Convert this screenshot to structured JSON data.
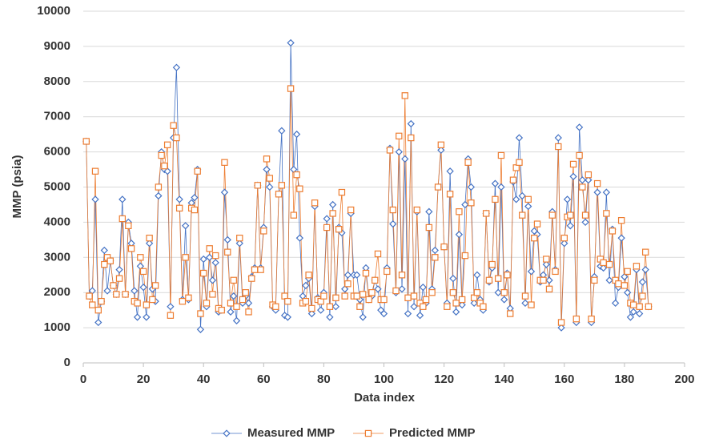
{
  "chart_data": {
    "type": "line",
    "x_label": "Data index",
    "y_label": "MMP (psia)",
    "xlim": [
      0,
      200
    ],
    "xticks": [
      0,
      20,
      40,
      60,
      80,
      100,
      120,
      140,
      160,
      180,
      200
    ],
    "ylim": [
      0,
      10000
    ],
    "yticks": [
      0,
      1000,
      2000,
      3000,
      4000,
      5000,
      6000,
      7000,
      8000,
      9000,
      10000
    ],
    "grid": true,
    "legend": "bottom",
    "x": [
      1,
      2,
      3,
      4,
      5,
      6,
      7,
      8,
      9,
      10,
      11,
      12,
      13,
      14,
      15,
      16,
      17,
      18,
      19,
      20,
      21,
      22,
      23,
      24,
      25,
      26,
      27,
      28,
      29,
      30,
      31,
      32,
      33,
      34,
      35,
      36,
      37,
      38,
      39,
      40,
      41,
      42,
      43,
      44,
      45,
      46,
      47,
      48,
      49,
      50,
      51,
      52,
      53,
      54,
      55,
      56,
      57,
      58,
      59,
      60,
      61,
      62,
      63,
      64,
      65,
      66,
      67,
      68,
      69,
      70,
      71,
      72,
      73,
      74,
      75,
      76,
      77,
      78,
      79,
      80,
      81,
      82,
      83,
      84,
      85,
      86,
      87,
      88,
      89,
      90,
      91,
      92,
      93,
      94,
      95,
      96,
      97,
      98,
      99,
      100,
      101,
      102,
      103,
      104,
      105,
      106,
      107,
      108,
      109,
      110,
      111,
      112,
      113,
      114,
      115,
      116,
      117,
      118,
      119,
      120,
      121,
      122,
      123,
      124,
      125,
      126,
      127,
      128,
      129,
      130,
      131,
      132,
      133,
      134,
      135,
      136,
      137,
      138,
      139,
      140,
      141,
      142,
      143,
      144,
      145,
      146,
      147,
      148,
      149,
      150,
      151,
      152,
      153,
      154,
      155,
      156,
      157,
      158,
      159,
      160,
      161,
      162,
      163,
      164,
      165,
      166,
      167,
      168,
      169,
      170,
      171,
      172,
      173,
      174,
      175,
      176,
      177,
      178,
      179,
      180,
      181,
      182,
      183,
      184,
      185,
      186,
      187,
      188
    ],
    "series": [
      {
        "name": "Measured MMP",
        "color": "#4472c4",
        "marker": "diamond",
        "values": [
          6300,
          1900,
          2050,
          4650,
          1150,
          1750,
          3200,
          2050,
          2900,
          2200,
          1950,
          2650,
          4650,
          1950,
          4000,
          3400,
          2050,
          1300,
          2750,
          2150,
          1300,
          3400,
          2100,
          1750,
          4750,
          6000,
          5500,
          5450,
          1600,
          6400,
          8400,
          4650,
          1800,
          3900,
          1800,
          4550,
          4700,
          5500,
          950,
          2950,
          1600,
          3000,
          2350,
          2850,
          1450,
          1500,
          4850,
          3500,
          1450,
          1900,
          1200,
          3400,
          1700,
          1900,
          1700,
          2450,
          2700,
          5050,
          2700,
          3850,
          5500,
          5000,
          1600,
          1500,
          4800,
          6600,
          1350,
          1300,
          9100,
          5500,
          6500,
          3550,
          1900,
          2200,
          2400,
          1400,
          4450,
          1850,
          1500,
          2000,
          4100,
          1300,
          4500,
          1600,
          3850,
          3700,
          2100,
          2500,
          4250,
          2500,
          2500,
          1800,
          1300,
          2700,
          1800,
          1900,
          2350,
          2100,
          1500,
          1400,
          2700,
          6100,
          3950,
          2000,
          6000,
          2100,
          5800,
          1400,
          6800,
          1600,
          4300,
          1350,
          2150,
          1700,
          4300,
          2100,
          3200,
          5000,
          6050,
          3300,
          1700,
          5450,
          2400,
          1450,
          3650,
          1650,
          4500,
          5800,
          5000,
          1700,
          2500,
          1800,
          1500,
          4250,
          2300,
          2700,
          5100,
          2000,
          5000,
          1800,
          2550,
          1550,
          5150,
          4650,
          6400,
          4750,
          1700,
          4450,
          2600,
          3750,
          3650,
          2300,
          2500,
          2800,
          2350,
          4300,
          2650,
          6400,
          1000,
          3400,
          4650,
          3900,
          5300,
          1150,
          6700,
          5200,
          4000,
          5200,
          1150,
          2450,
          4850,
          2750,
          2700,
          4850,
          2350,
          3800,
          1700,
          2150,
          3550,
          2450,
          2000,
          1300,
          1450,
          2650,
          1400,
          2300,
          2650,
          1600
        ]
      },
      {
        "name": "Predicted MMP",
        "color": "#ed7d31",
        "marker": "square",
        "values": [
          6300,
          1900,
          1650,
          5450,
          1500,
          1750,
          2800,
          3000,
          2900,
          2200,
          1950,
          2400,
          4100,
          1950,
          3900,
          3250,
          1750,
          1700,
          3000,
          2600,
          1650,
          3550,
          1800,
          2200,
          5000,
          5900,
          5600,
          6200,
          1350,
          6750,
          6400,
          4400,
          1750,
          3000,
          1850,
          4400,
          4350,
          5450,
          1400,
          2550,
          1700,
          3250,
          1950,
          3050,
          1550,
          1500,
          5700,
          3150,
          1700,
          2350,
          1600,
          3550,
          1800,
          2000,
          1450,
          2400,
          2650,
          5050,
          2650,
          3750,
          5800,
          5250,
          1650,
          1600,
          4800,
          5050,
          1900,
          1750,
          7800,
          4200,
          5350,
          4950,
          1700,
          1750,
          2500,
          1550,
          4550,
          1800,
          1750,
          1900,
          3850,
          1600,
          4250,
          1850,
          3800,
          4850,
          1900,
          2250,
          4350,
          1900,
          1900,
          1600,
          1950,
          2550,
          1800,
          2000,
          2350,
          3100,
          1800,
          1800,
          2600,
          6050,
          4350,
          2050,
          6450,
          2500,
          7600,
          1850,
          6400,
          1900,
          4350,
          1700,
          1600,
          1800,
          3850,
          2000,
          3000,
          5000,
          6200,
          3300,
          1600,
          4800,
          2000,
          1700,
          4300,
          1800,
          3050,
          5700,
          4550,
          1850,
          2000,
          1700,
          1600,
          4250,
          2350,
          2800,
          4650,
          2400,
          5900,
          2000,
          2500,
          1400,
          5200,
          5550,
          5700,
          4200,
          1900,
          4650,
          1650,
          3550,
          3950,
          2350,
          2350,
          2950,
          2100,
          4200,
          2600,
          6150,
          1150,
          3550,
          4150,
          4200,
          5650,
          1250,
          5900,
          5000,
          4200,
          5350,
          1250,
          2350,
          5100,
          2950,
          2850,
          4250,
          2800,
          3750,
          2350,
          2250,
          4050,
          2200,
          2600,
          1700,
          1650,
          2750,
          1600,
          1900,
          3150,
          1600
        ]
      }
    ]
  }
}
